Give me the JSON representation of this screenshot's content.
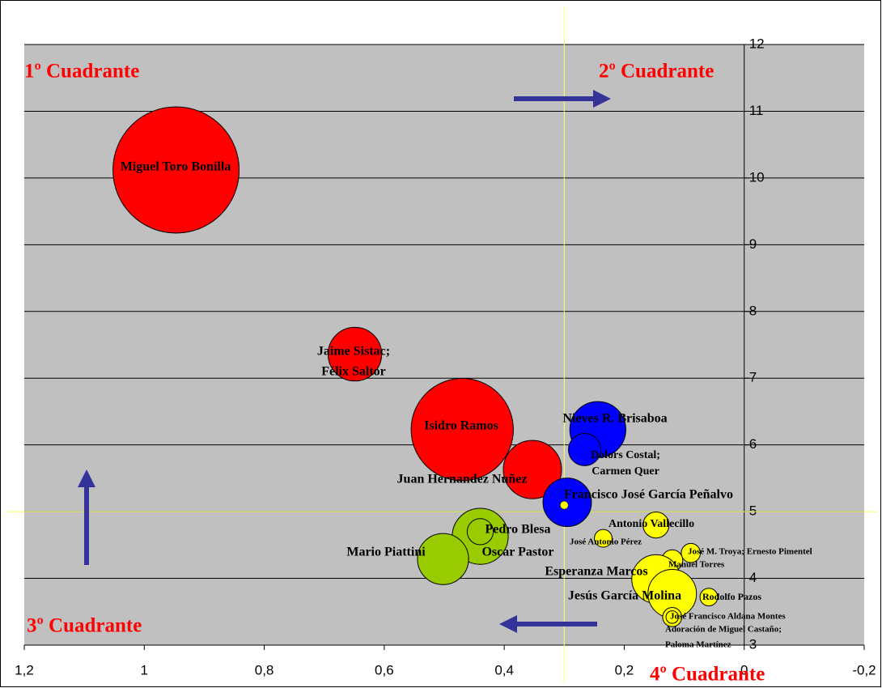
{
  "chart_data": {
    "type": "bubble",
    "xlim": [
      1.2,
      -0.2
    ],
    "xticks": [
      {
        "value": 1.2,
        "label": "1,2"
      },
      1,
      {
        "value": 0.8,
        "label": "0,8"
      },
      {
        "value": 0.6,
        "label": "0,6"
      },
      {
        "value": 0.4,
        "label": "0,4"
      },
      {
        "value": 0.2,
        "label": "0,2"
      },
      0,
      {
        "value": -0.2,
        "label": "-0,2"
      }
    ],
    "ylim": [
      3,
      12
    ],
    "yticks": [
      3,
      4,
      5,
      6,
      7,
      8,
      9,
      10,
      11,
      12
    ],
    "grid": true,
    "crosshair": {
      "x": 0.3,
      "y": 5
    },
    "annotations": [
      "1º Cuadrante",
      "2º Cuadrante",
      "3º Cuadrante",
      "4º Cuadrante"
    ],
    "points": [
      {
        "label": "Miguel Toro Bonilla",
        "x": 0.947,
        "y": 10.12,
        "size": 61,
        "color": "#ff0000"
      },
      {
        "label": [
          "Jaime Sistac;",
          "Félix Saltor"
        ],
        "x": 0.649,
        "y": 7.36,
        "size": 11,
        "color": "#ff0000"
      },
      {
        "label": "Isidro Ramos",
        "x": 0.47,
        "y": 6.23,
        "size": 40,
        "color": "#ff0000"
      },
      {
        "label": "Juan Hernandez Nuñez",
        "x": 0.353,
        "y": 5.63,
        "size": 13,
        "color": "#ff0000"
      },
      {
        "label": "Nieves R. Brisaboa",
        "x": 0.244,
        "y": 6.23,
        "size": 12,
        "color": "#0000ff"
      },
      {
        "label": [
          "Dolors Costal;",
          "Carmen Quer"
        ],
        "x": 0.266,
        "y": 5.93,
        "size": 4,
        "color": "#0000ff"
      },
      {
        "label": "Francisco José García Peñalvo",
        "x": 0.295,
        "y": 5.14,
        "size": 9,
        "color": "#0000ff"
      },
      {
        "label": "Oscar Pastor",
        "x": 0.44,
        "y": 4.63,
        "size": 12,
        "color": "#99cc00"
      },
      {
        "label": "Pedro Blesa",
        "x": 0.44,
        "y": 4.7,
        "size": 2.6,
        "color": "#99cc00"
      },
      {
        "label": "Mario Piattini",
        "x": 0.502,
        "y": 4.29,
        "size": 10,
        "color": "#99cc00"
      },
      {
        "label": "Antonio Vallecillo",
        "x": 0.147,
        "y": 4.8,
        "size": 2.6,
        "color": "#ffff00"
      },
      {
        "label": "José Antonio Pérez",
        "x": 0.235,
        "y": 4.6,
        "size": 1.2,
        "color": "#ffff00"
      },
      {
        "label": "José M. Troya; Ernesto Pimentel",
        "x": 0.089,
        "y": 4.38,
        "size": 1.4,
        "color": "#ffff00"
      },
      {
        "label": "Manuel Torres",
        "x": 0.12,
        "y": 4.27,
        "size": 1.7,
        "color": "#ffff00"
      },
      {
        "label": "Esperanza Marcos",
        "x": 0.147,
        "y": 3.99,
        "size": 9,
        "color": "#ffff00"
      },
      {
        "label": "Jesús García Molina",
        "x": 0.12,
        "y": 3.77,
        "size": 9,
        "color": "#ffff00"
      },
      {
        "label": "Rodolfo Pazos",
        "x": 0.059,
        "y": 3.72,
        "size": 1.2,
        "color": "#ffff00"
      },
      {
        "label": "José Francisco Aldana Montes",
        "x": 0.12,
        "y": 3.42,
        "size": 1.4,
        "color": "#ffff00"
      },
      {
        "label": [
          "Adoración de Miguel Castaño;",
          "Paloma Martínez"
        ],
        "x": 0.12,
        "y": 3.42,
        "size": 0.6,
        "color": "#ffff00"
      }
    ]
  }
}
